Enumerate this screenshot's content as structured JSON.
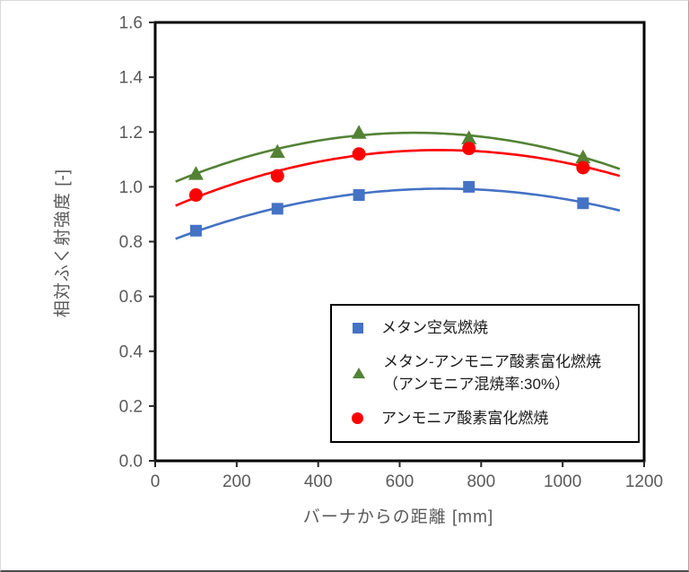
{
  "chart_data": {
    "type": "scatter",
    "x": [
      100,
      300,
      500,
      770,
      1050
    ],
    "series": [
      {
        "name": "メタン空気燃焼",
        "marker": "square",
        "color": "#4472C4",
        "values": [
          0.84,
          0.92,
          0.97,
          1.0,
          0.94
        ]
      },
      {
        "name": "メタン-アンモニア酸素富化燃焼（アンモニア混焼率:30%）",
        "marker": "triangle",
        "color": "#548235",
        "values": [
          1.05,
          1.13,
          1.2,
          1.18,
          1.11
        ]
      },
      {
        "name": "アンモニア酸素富化燃焼",
        "marker": "circle",
        "color": "#FF0000",
        "values": [
          0.97,
          1.04,
          1.12,
          1.14,
          1.07
        ]
      }
    ],
    "title": "",
    "xlabel": "バーナからの距離  [mm]",
    "ylabel": "相対ふく射強度 [-]",
    "xlim": [
      0,
      1200
    ],
    "ylim": [
      0,
      1.6
    ],
    "x_ticks": [
      "0",
      "200",
      "400",
      "600",
      "800",
      "1000",
      "1200"
    ],
    "x_tick_values": [
      0,
      200,
      400,
      600,
      800,
      1000,
      1200
    ],
    "y_ticks": [
      "0.0",
      "0.2",
      "0.4",
      "0.6",
      "0.8",
      "1.0",
      "1.2",
      "1.4",
      "1.6"
    ],
    "y_tick_values": [
      0,
      0.2,
      0.4,
      0.6,
      0.8,
      1.0,
      1.2,
      1.4,
      1.6
    ],
    "grid": false,
    "trendline": "quadratic",
    "curve_x_range": [
      50,
      1140
    ],
    "legend_position": "inside lower-right"
  },
  "legend": {
    "entries": [
      {
        "label": "メタン空気燃焼",
        "marker": "square",
        "color": "#4472C4"
      },
      {
        "label_line1": "メタン-アンモニア酸素富化燃焼",
        "label_line2": "（アンモニア混焼率:30%）",
        "marker": "triangle",
        "color": "#548235"
      },
      {
        "label": "アンモニア酸素富化燃焼",
        "marker": "circle",
        "color": "#FF0000"
      }
    ]
  },
  "colors": {
    "axis_text": "#595959",
    "frame": "#000000",
    "background": "#ffffff"
  }
}
